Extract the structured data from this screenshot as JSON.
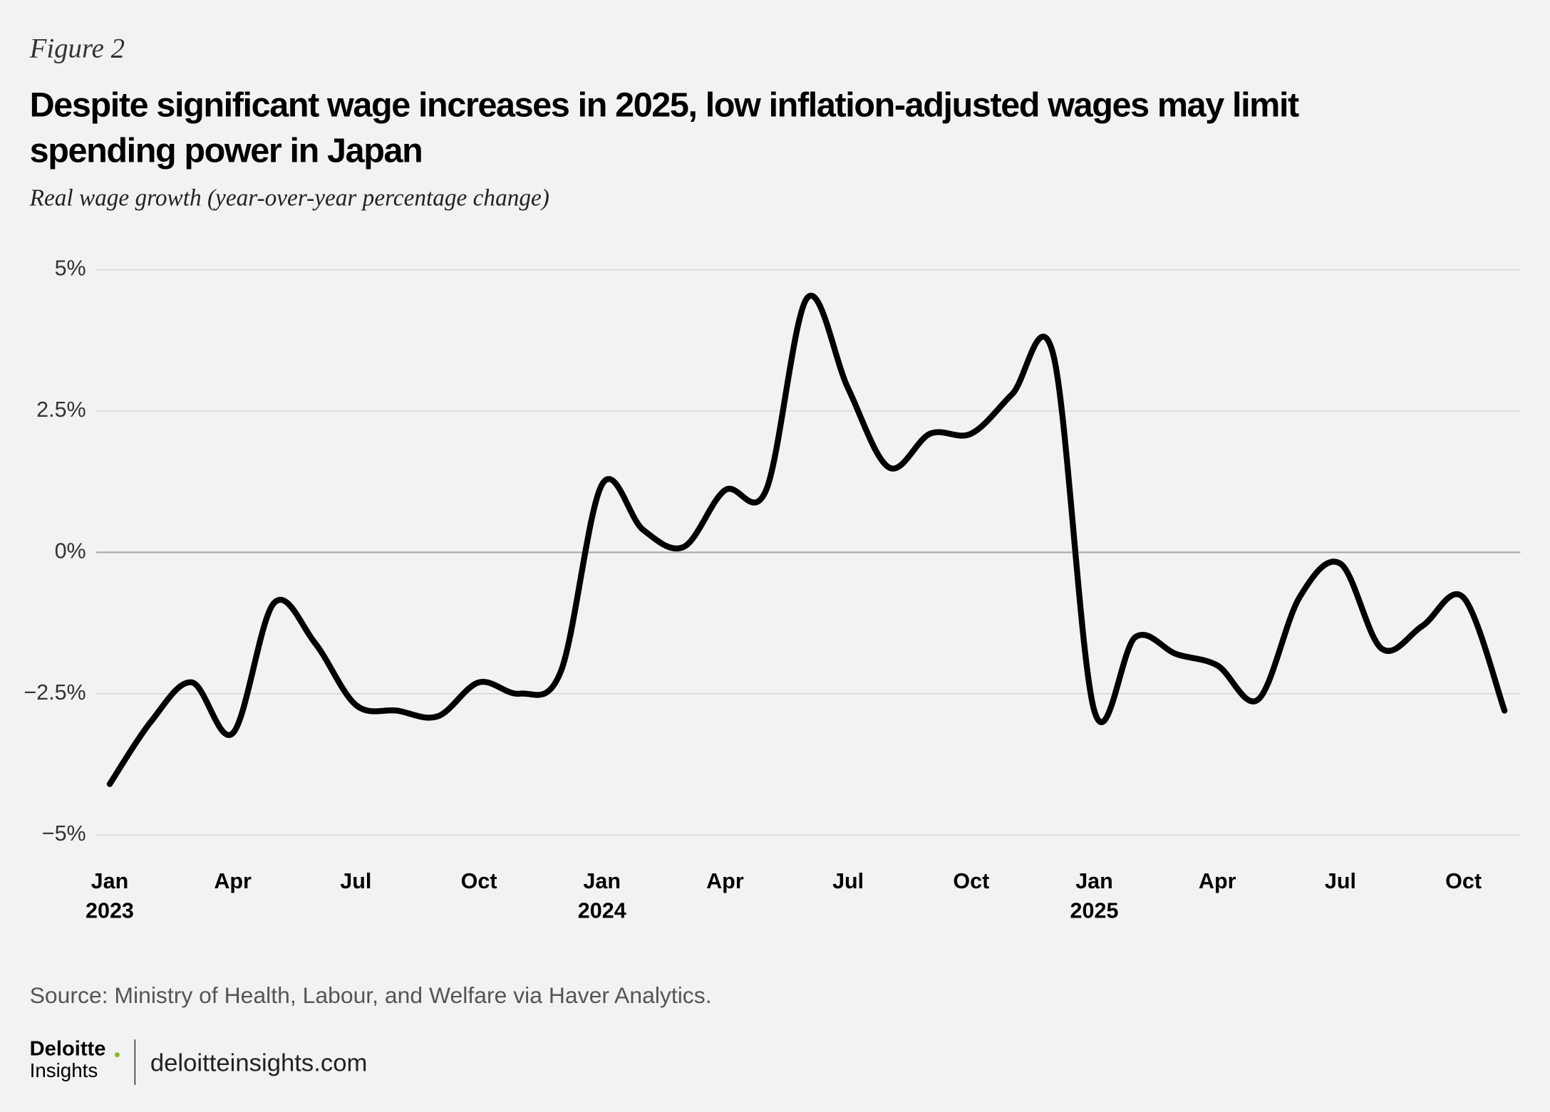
{
  "header": {
    "figure": "Figure 2",
    "title": "Despite significant wage increases in 2025, low inflation-adjusted wages may limit spending power in Japan"
  },
  "chart_data": {
    "type": "line",
    "subtitle": "Real wage growth (year-over-year percentage change)",
    "categories": [
      "Jan 2023",
      null,
      null,
      "Apr",
      null,
      null,
      "Jul",
      null,
      null,
      "Oct",
      null,
      null,
      "Jan 2024",
      null,
      null,
      "Apr",
      null,
      null,
      "Jul",
      null,
      null,
      "Oct",
      null,
      null,
      "Jan 2025",
      null,
      null,
      "Apr",
      null,
      null,
      "Jul",
      null,
      null,
      "Oct",
      null
    ],
    "series": [
      {
        "name": "Real wage growth",
        "color": "#000000",
        "values": [
          -4.1,
          -3.0,
          -2.3,
          -3.2,
          -0.9,
          -1.6,
          -2.7,
          -2.8,
          -2.9,
          -2.3,
          -2.5,
          -2.1,
          1.2,
          0.4,
          0.1,
          1.1,
          1.1,
          4.5,
          2.9,
          1.5,
          2.1,
          2.1,
          2.8,
          3.5,
          -2.8,
          -1.5,
          -1.8,
          -2.0,
          -2.6,
          -0.8,
          -0.2,
          -1.7,
          -1.3,
          -0.8,
          -2.8
        ]
      }
    ],
    "ylim": [
      -5,
      5
    ],
    "yticks": [
      {
        "value": 5,
        "label": "5%"
      },
      {
        "value": 2.5,
        "label": "2.5%"
      },
      {
        "value": 0,
        "label": "0%"
      },
      {
        "value": -2.5,
        "label": "−2.5%"
      },
      {
        "value": -5,
        "label": "−5%"
      }
    ],
    "grid": true
  },
  "footer": {
    "source": "Source: Ministry of Health, Labour, and Welfare via Haver Analytics.",
    "logo_top": "Deloitte",
    "logo_bottom": "Insights",
    "site": "deloitteinsights.com"
  }
}
